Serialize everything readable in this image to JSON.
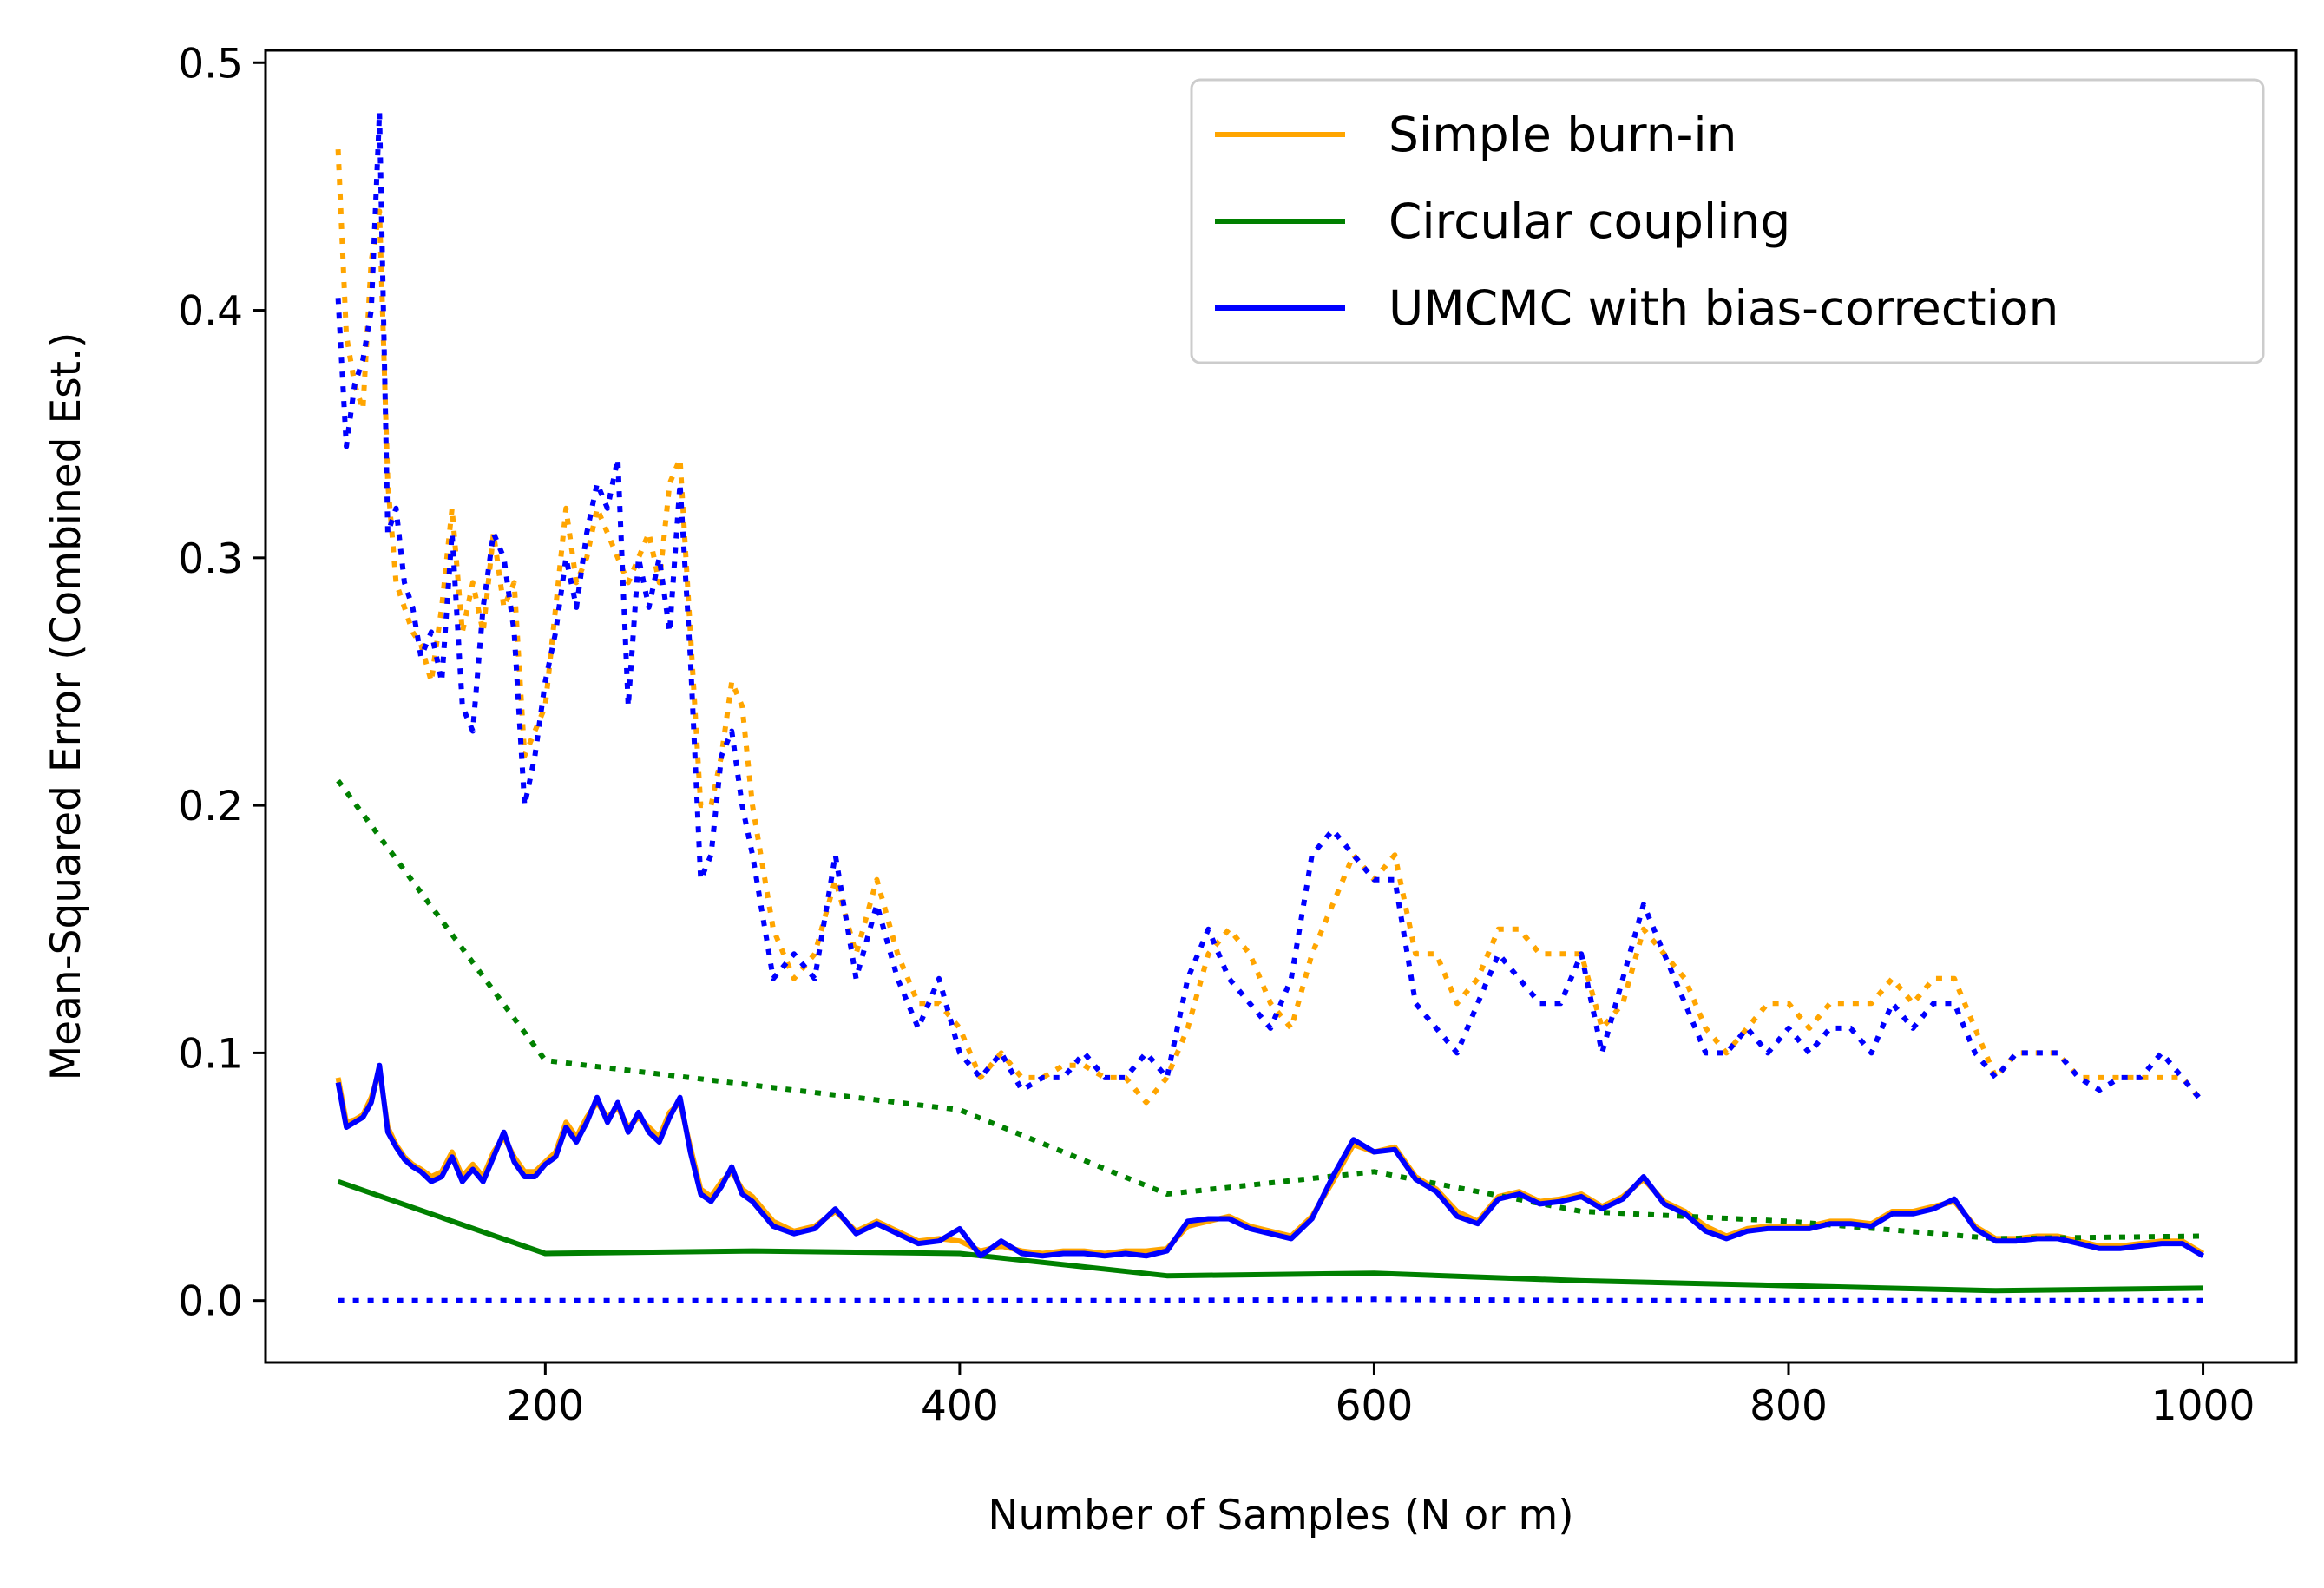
{
  "chart_data": {
    "type": "line",
    "title": "",
    "xlabel": "Number of Samples (N or m)",
    "ylabel": "Mean-Squared Error (Combined Est.)",
    "xlim": [
      65,
      1045
    ],
    "ylim": [
      -0.025,
      0.505
    ],
    "xticks": [
      "200",
      "400",
      "600",
      "800",
      "1000"
    ],
    "xtick_values": [
      200,
      400,
      600,
      800,
      1000
    ],
    "yticks": [
      "0.0",
      "0.1",
      "0.2",
      "0.3",
      "0.4",
      "0.5"
    ],
    "ytick_values": [
      0.0,
      0.1,
      0.2,
      0.3,
      0.4,
      0.5
    ],
    "grid": false,
    "legend_position": "top-right",
    "legend": [
      {
        "label": "Simple burn-in",
        "color": "#ffa500"
      },
      {
        "label": "Circular coupling",
        "color": "#008000"
      },
      {
        "label": "UMCMC with bias-correction",
        "color": "#0000ff"
      }
    ],
    "series": [
      {
        "name": "Simple burn-in",
        "color": "#ffa500",
        "style": "dotted",
        "x": [
          100,
          104,
          108,
          112,
          116,
          120,
          124,
          128,
          132,
          136,
          140,
          145,
          150,
          155,
          160,
          165,
          170,
          175,
          180,
          185,
          190,
          195,
          200,
          205,
          210,
          215,
          220,
          225,
          230,
          235,
          240,
          245,
          250,
          255,
          260,
          265,
          270,
          275,
          280,
          285,
          290,
          295,
          300,
          310,
          320,
          330,
          340,
          350,
          360,
          370,
          380,
          390,
          400,
          410,
          420,
          430,
          440,
          450,
          460,
          470,
          480,
          490,
          500,
          510,
          520,
          530,
          540,
          550,
          560,
          570,
          580,
          590,
          600,
          610,
          620,
          630,
          640,
          650,
          660,
          670,
          680,
          690,
          700,
          710,
          720,
          730,
          740,
          750,
          760,
          770,
          780,
          790,
          800,
          810,
          820,
          830,
          840,
          850,
          860,
          870,
          880,
          890,
          900,
          910,
          920,
          930,
          940,
          950,
          960,
          970,
          980,
          990,
          1000
        ],
        "y": [
          0.465,
          0.39,
          0.37,
          0.36,
          0.42,
          0.44,
          0.33,
          0.29,
          0.28,
          0.27,
          0.265,
          0.25,
          0.28,
          0.32,
          0.27,
          0.29,
          0.27,
          0.31,
          0.28,
          0.29,
          0.22,
          0.23,
          0.24,
          0.28,
          0.32,
          0.29,
          0.3,
          0.32,
          0.31,
          0.3,
          0.29,
          0.3,
          0.31,
          0.29,
          0.33,
          0.34,
          0.27,
          0.2,
          0.2,
          0.22,
          0.25,
          0.24,
          0.2,
          0.15,
          0.13,
          0.14,
          0.17,
          0.14,
          0.17,
          0.14,
          0.12,
          0.12,
          0.11,
          0.09,
          0.1,
          0.09,
          0.09,
          0.095,
          0.095,
          0.09,
          0.09,
          0.08,
          0.09,
          0.11,
          0.14,
          0.15,
          0.14,
          0.12,
          0.11,
          0.14,
          0.16,
          0.18,
          0.17,
          0.18,
          0.14,
          0.14,
          0.12,
          0.13,
          0.15,
          0.15,
          0.14,
          0.14,
          0.14,
          0.11,
          0.12,
          0.15,
          0.14,
          0.13,
          0.11,
          0.1,
          0.11,
          0.12,
          0.12,
          0.11,
          0.12,
          0.12,
          0.12,
          0.13,
          0.12,
          0.13,
          0.13,
          0.11,
          0.09,
          0.1,
          0.1,
          0.1,
          0.09,
          0.09,
          0.09,
          0.09,
          0.09,
          0.09,
          0.08
        ]
      },
      {
        "name": "Simple burn-in",
        "color": "#ffa500",
        "style": "solid",
        "x": [
          100,
          104,
          108,
          112,
          116,
          120,
          124,
          128,
          132,
          136,
          140,
          145,
          150,
          155,
          160,
          165,
          170,
          175,
          180,
          185,
          190,
          195,
          200,
          205,
          210,
          215,
          220,
          225,
          230,
          235,
          240,
          245,
          250,
          255,
          260,
          265,
          270,
          275,
          280,
          285,
          290,
          295,
          300,
          310,
          320,
          330,
          340,
          350,
          360,
          370,
          380,
          390,
          400,
          410,
          420,
          430,
          440,
          450,
          460,
          470,
          480,
          490,
          500,
          510,
          520,
          530,
          540,
          550,
          560,
          570,
          580,
          590,
          600,
          610,
          620,
          630,
          640,
          650,
          660,
          670,
          680,
          690,
          700,
          710,
          720,
          730,
          740,
          750,
          760,
          770,
          780,
          790,
          800,
          810,
          820,
          830,
          840,
          850,
          860,
          870,
          880,
          890,
          900,
          910,
          920,
          930,
          940,
          950,
          960,
          970,
          980,
          990,
          1000
        ],
        "y": [
          0.09,
          0.072,
          0.073,
          0.075,
          0.082,
          0.093,
          0.07,
          0.063,
          0.058,
          0.055,
          0.053,
          0.05,
          0.052,
          0.06,
          0.05,
          0.055,
          0.05,
          0.06,
          0.066,
          0.058,
          0.052,
          0.052,
          0.056,
          0.06,
          0.072,
          0.066,
          0.074,
          0.08,
          0.074,
          0.078,
          0.07,
          0.074,
          0.07,
          0.066,
          0.076,
          0.08,
          0.062,
          0.045,
          0.042,
          0.048,
          0.052,
          0.045,
          0.042,
          0.032,
          0.028,
          0.03,
          0.036,
          0.028,
          0.032,
          0.028,
          0.024,
          0.025,
          0.024,
          0.02,
          0.022,
          0.02,
          0.019,
          0.02,
          0.02,
          0.019,
          0.02,
          0.02,
          0.021,
          0.03,
          0.032,
          0.034,
          0.03,
          0.028,
          0.026,
          0.034,
          0.048,
          0.063,
          0.06,
          0.062,
          0.05,
          0.045,
          0.036,
          0.032,
          0.042,
          0.044,
          0.04,
          0.041,
          0.043,
          0.038,
          0.042,
          0.049,
          0.04,
          0.036,
          0.03,
          0.026,
          0.029,
          0.03,
          0.03,
          0.03,
          0.032,
          0.032,
          0.031,
          0.036,
          0.036,
          0.038,
          0.04,
          0.03,
          0.025,
          0.025,
          0.026,
          0.026,
          0.024,
          0.022,
          0.022,
          0.023,
          0.024,
          0.024,
          0.019
        ]
      },
      {
        "name": "Circular coupling",
        "color": "#008000",
        "style": "dotted",
        "x": [
          100,
          200,
          300,
          400,
          500,
          600,
          700,
          800,
          900,
          1000
        ],
        "y": [
          0.21,
          0.097,
          0.087,
          0.077,
          0.043,
          0.052,
          0.036,
          0.032,
          0.025,
          0.026
        ]
      },
      {
        "name": "Circular coupling",
        "color": "#008000",
        "style": "solid",
        "x": [
          100,
          200,
          300,
          400,
          500,
          600,
          700,
          800,
          900,
          1000
        ],
        "y": [
          0.048,
          0.019,
          0.02,
          0.019,
          0.01,
          0.011,
          0.008,
          0.006,
          0.004,
          0.005
        ]
      },
      {
        "name": "UMCMC with bias-correction",
        "color": "#0000ff",
        "style": "dotted",
        "x": [
          100,
          104,
          108,
          112,
          116,
          120,
          124,
          128,
          132,
          136,
          140,
          145,
          150,
          155,
          160,
          165,
          170,
          175,
          180,
          185,
          190,
          195,
          200,
          205,
          210,
          215,
          220,
          225,
          230,
          235,
          240,
          245,
          250,
          255,
          260,
          265,
          270,
          275,
          280,
          285,
          290,
          295,
          300,
          310,
          320,
          330,
          340,
          350,
          360,
          370,
          380,
          390,
          400,
          410,
          420,
          430,
          440,
          450,
          460,
          470,
          480,
          490,
          500,
          510,
          520,
          530,
          540,
          550,
          560,
          570,
          580,
          590,
          600,
          610,
          620,
          630,
          640,
          650,
          660,
          670,
          680,
          690,
          700,
          710,
          720,
          730,
          740,
          750,
          760,
          770,
          780,
          790,
          800,
          810,
          820,
          830,
          840,
          850,
          860,
          870,
          880,
          890,
          900,
          910,
          920,
          930,
          940,
          950,
          960,
          970,
          980,
          990,
          1000
        ],
        "y": [
          0.405,
          0.345,
          0.37,
          0.38,
          0.4,
          0.48,
          0.31,
          0.32,
          0.29,
          0.28,
          0.26,
          0.27,
          0.25,
          0.31,
          0.24,
          0.23,
          0.28,
          0.31,
          0.3,
          0.27,
          0.2,
          0.22,
          0.25,
          0.27,
          0.3,
          0.28,
          0.31,
          0.33,
          0.32,
          0.34,
          0.24,
          0.3,
          0.28,
          0.3,
          0.27,
          0.33,
          0.26,
          0.17,
          0.18,
          0.22,
          0.23,
          0.2,
          0.18,
          0.13,
          0.14,
          0.13,
          0.18,
          0.13,
          0.16,
          0.13,
          0.11,
          0.13,
          0.1,
          0.09,
          0.1,
          0.085,
          0.09,
          0.09,
          0.1,
          0.09,
          0.09,
          0.1,
          0.09,
          0.13,
          0.15,
          0.13,
          0.12,
          0.11,
          0.13,
          0.18,
          0.19,
          0.18,
          0.17,
          0.17,
          0.12,
          0.11,
          0.1,
          0.12,
          0.14,
          0.13,
          0.12,
          0.12,
          0.14,
          0.1,
          0.13,
          0.16,
          0.14,
          0.12,
          0.1,
          0.1,
          0.11,
          0.1,
          0.11,
          0.1,
          0.11,
          0.11,
          0.1,
          0.12,
          0.11,
          0.12,
          0.12,
          0.1,
          0.09,
          0.1,
          0.1,
          0.1,
          0.09,
          0.085,
          0.09,
          0.09,
          0.1,
          0.09,
          0.08
        ]
      },
      {
        "name": "UMCMC with bias-correction",
        "color": "#0000ff",
        "style": "solid",
        "x": [
          100,
          104,
          108,
          112,
          116,
          120,
          124,
          128,
          132,
          136,
          140,
          145,
          150,
          155,
          160,
          165,
          170,
          175,
          180,
          185,
          190,
          195,
          200,
          205,
          210,
          215,
          220,
          225,
          230,
          235,
          240,
          245,
          250,
          255,
          260,
          265,
          270,
          275,
          280,
          285,
          290,
          295,
          300,
          310,
          320,
          330,
          340,
          350,
          360,
          370,
          380,
          390,
          400,
          410,
          420,
          430,
          440,
          450,
          460,
          470,
          480,
          490,
          500,
          510,
          520,
          530,
          540,
          550,
          560,
          570,
          580,
          590,
          600,
          610,
          620,
          630,
          640,
          650,
          660,
          670,
          680,
          690,
          700,
          710,
          720,
          730,
          740,
          750,
          760,
          770,
          780,
          790,
          800,
          810,
          820,
          830,
          840,
          850,
          860,
          870,
          880,
          890,
          900,
          910,
          920,
          930,
          940,
          950,
          960,
          970,
          980,
          990,
          1000
        ],
        "y": [
          0.088,
          0.07,
          0.072,
          0.074,
          0.08,
          0.095,
          0.068,
          0.062,
          0.057,
          0.054,
          0.052,
          0.048,
          0.05,
          0.058,
          0.048,
          0.053,
          0.048,
          0.058,
          0.068,
          0.056,
          0.05,
          0.05,
          0.055,
          0.058,
          0.07,
          0.064,
          0.072,
          0.082,
          0.072,
          0.08,
          0.068,
          0.076,
          0.068,
          0.064,
          0.074,
          0.082,
          0.06,
          0.043,
          0.04,
          0.046,
          0.054,
          0.043,
          0.04,
          0.03,
          0.027,
          0.029,
          0.037,
          0.027,
          0.031,
          0.027,
          0.023,
          0.024,
          0.029,
          0.018,
          0.024,
          0.019,
          0.018,
          0.019,
          0.019,
          0.018,
          0.019,
          0.018,
          0.02,
          0.032,
          0.033,
          0.033,
          0.029,
          0.027,
          0.025,
          0.033,
          0.05,
          0.065,
          0.06,
          0.061,
          0.049,
          0.044,
          0.034,
          0.031,
          0.041,
          0.043,
          0.039,
          0.04,
          0.042,
          0.037,
          0.041,
          0.05,
          0.039,
          0.035,
          0.028,
          0.025,
          0.028,
          0.029,
          0.029,
          0.029,
          0.031,
          0.031,
          0.03,
          0.035,
          0.035,
          0.037,
          0.041,
          0.029,
          0.024,
          0.024,
          0.025,
          0.025,
          0.023,
          0.021,
          0.021,
          0.022,
          0.023,
          0.023,
          0.018
        ]
      },
      {
        "name": "UMCMC with bias-correction",
        "color": "#0000ff",
        "style": "dotted",
        "x": [
          100,
          200,
          300,
          400,
          500,
          600,
          700,
          800,
          900,
          1000
        ],
        "y": [
          0.0,
          0.0,
          0.0,
          0.0,
          0.0,
          0.0005,
          0.0,
          0.0,
          0.0,
          0.0
        ]
      }
    ]
  }
}
